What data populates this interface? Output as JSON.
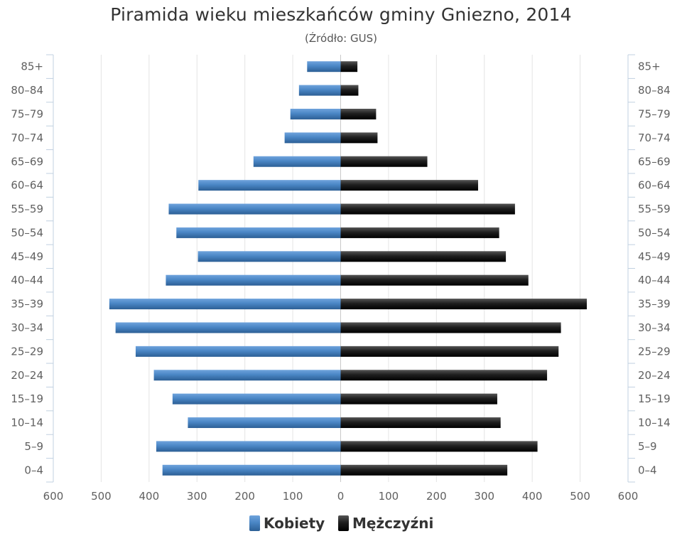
{
  "chart_data": {
    "type": "bar",
    "orientation": "horizontal",
    "title": "Piramida wieku mieszkańców gminy Gniezno, 2014",
    "subtitle": "(Źródło: GUS)",
    "categories": [
      "85+",
      "80-84",
      "75-79",
      "70-74",
      "65-69",
      "60-64",
      "55-59",
      "50-54",
      "45-49",
      "40-44",
      "35-39",
      "30-34",
      "25-29",
      "20-24",
      "15-19",
      "10-14",
      "5-9",
      "0-4"
    ],
    "series": [
      {
        "name": "Kobiety",
        "color": "#4a86c5",
        "side": "left",
        "values": [
          70,
          87,
          105,
          117,
          182,
          297,
          359,
          343,
          298,
          365,
          483,
          470,
          428,
          390,
          351,
          319,
          385,
          372
        ]
      },
      {
        "name": "Mężczyźni",
        "color": "#1a1a1a",
        "side": "right",
        "values": [
          35,
          37,
          74,
          77,
          181,
          287,
          364,
          331,
          345,
          392,
          514,
          460,
          455,
          431,
          327,
          334,
          411,
          348
        ]
      }
    ],
    "xlim": [
      -600,
      600
    ],
    "xticks": [
      600,
      500,
      400,
      300,
      200,
      100,
      0,
      100,
      200,
      300,
      400,
      500,
      600
    ],
    "grid": true,
    "legend_position": "bottom"
  }
}
